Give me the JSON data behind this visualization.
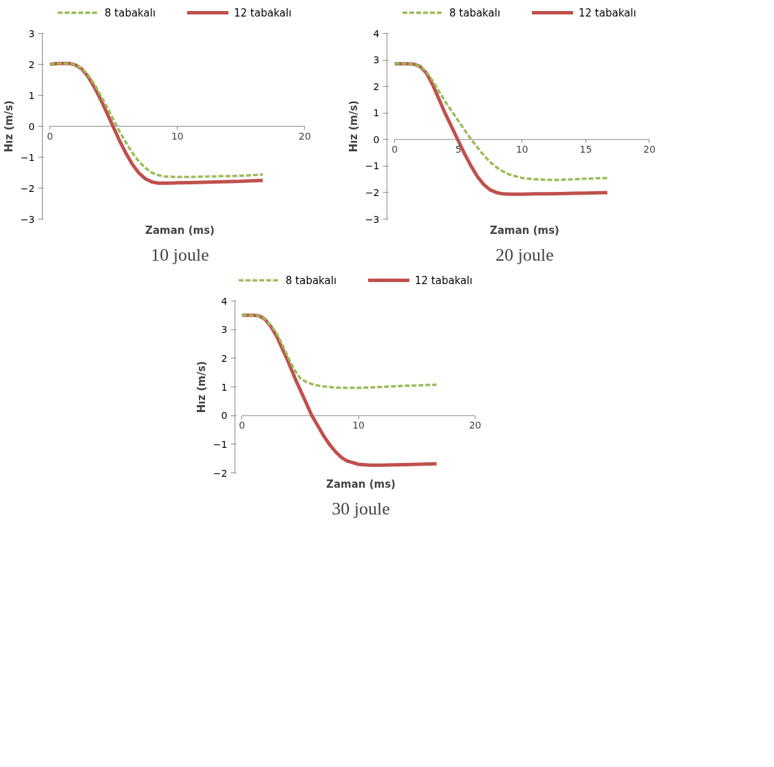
{
  "chart_data": [
    {
      "type": "line",
      "xlabel": "Zaman (ms)",
      "ylabel": "Hız (m/s)",
      "xlim": [
        0,
        20
      ],
      "ylim": [
        -3,
        3
      ],
      "xticks": [
        0,
        10,
        20
      ],
      "yticks": [
        -3,
        -2,
        -1,
        0,
        1,
        2,
        3
      ],
      "grid": false,
      "legend": "top",
      "annotations": [
        "10 joule"
      ],
      "x": [
        0,
        0.5,
        1,
        1.5,
        2,
        2.5,
        3,
        3.5,
        4,
        4.5,
        5,
        5.5,
        6,
        6.5,
        7,
        7.5,
        8,
        8.5,
        9,
        10,
        11,
        12,
        13,
        14,
        15,
        16,
        16.7
      ],
      "series": [
        {
          "name": "8 tabakalı",
          "color": "#9bbb59",
          "line_style": "dashed",
          "values": [
            2.0,
            2.02,
            2.03,
            2.03,
            1.98,
            1.87,
            1.65,
            1.35,
            0.98,
            0.6,
            0.2,
            -0.2,
            -0.55,
            -0.88,
            -1.15,
            -1.35,
            -1.5,
            -1.58,
            -1.62,
            -1.64,
            -1.64,
            -1.63,
            -1.62,
            -1.61,
            -1.6,
            -1.58,
            -1.56
          ]
        },
        {
          "name": "12 tabakalı",
          "color": "#c0504d",
          "line_style": "solid",
          "values": [
            2.0,
            2.02,
            2.03,
            2.03,
            1.98,
            1.85,
            1.6,
            1.25,
            0.85,
            0.4,
            -0.05,
            -0.5,
            -0.9,
            -1.25,
            -1.52,
            -1.7,
            -1.8,
            -1.84,
            -1.84,
            -1.83,
            -1.82,
            -1.81,
            -1.8,
            -1.79,
            -1.78,
            -1.76,
            -1.75
          ]
        }
      ]
    },
    {
      "type": "line",
      "xlabel": "Zaman (ms)",
      "ylabel": "Hız (m/s)",
      "xlim": [
        0,
        20
      ],
      "ylim": [
        -3,
        4
      ],
      "xticks": [
        0,
        5,
        10,
        15,
        20
      ],
      "yticks": [
        -3,
        -2,
        -1,
        0,
        1,
        2,
        3,
        4
      ],
      "grid": false,
      "legend": "top",
      "annotations": [
        "20 joule"
      ],
      "x": [
        0,
        0.5,
        1,
        1.5,
        2,
        2.5,
        3,
        3.5,
        4,
        4.5,
        5,
        5.5,
        6,
        6.5,
        7,
        7.5,
        8,
        8.5,
        9,
        10,
        11,
        12,
        13,
        14,
        15,
        16,
        16.7
      ],
      "series": [
        {
          "name": "8 tabakalı",
          "color": "#9bbb59",
          "line_style": "dashed",
          "values": [
            2.85,
            2.85,
            2.85,
            2.84,
            2.75,
            2.55,
            2.2,
            1.8,
            1.4,
            1.05,
            0.7,
            0.35,
            0.0,
            -0.3,
            -0.6,
            -0.85,
            -1.05,
            -1.2,
            -1.32,
            -1.45,
            -1.5,
            -1.52,
            -1.52,
            -1.5,
            -1.48,
            -1.46,
            -1.45
          ]
        },
        {
          "name": "12 tabakalı",
          "color": "#c0504d",
          "line_style": "solid",
          "values": [
            2.85,
            2.85,
            2.85,
            2.84,
            2.75,
            2.5,
            2.05,
            1.5,
            0.95,
            0.45,
            -0.05,
            -0.55,
            -1.0,
            -1.4,
            -1.7,
            -1.9,
            -2.0,
            -2.05,
            -2.06,
            -2.06,
            -2.05,
            -2.05,
            -2.04,
            -2.03,
            -2.02,
            -2.01,
            -2.0
          ]
        }
      ]
    },
    {
      "type": "line",
      "xlabel": "Zaman (ms)",
      "ylabel": "Hız (m/s)",
      "xlim": [
        0,
        20
      ],
      "ylim": [
        -2,
        4
      ],
      "xticks": [
        0,
        10,
        20
      ],
      "yticks": [
        -2,
        -1,
        0,
        1,
        2,
        3,
        4
      ],
      "grid": false,
      "legend": "top",
      "annotations": [
        "30 joule"
      ],
      "x": [
        0,
        0.5,
        1,
        1.5,
        2,
        2.5,
        3,
        3.5,
        4,
        4.5,
        5,
        5.5,
        6,
        6.5,
        7,
        7.5,
        8,
        8.5,
        9,
        10,
        11,
        12,
        13,
        14,
        15,
        16,
        16.7
      ],
      "series": [
        {
          "name": "8 tabakalı",
          "color": "#9bbb59",
          "line_style": "dashed",
          "values": [
            3.5,
            3.5,
            3.5,
            3.48,
            3.35,
            3.15,
            2.85,
            2.45,
            2.0,
            1.6,
            1.3,
            1.18,
            1.1,
            1.05,
            1.02,
            1.0,
            0.98,
            0.97,
            0.97,
            0.97,
            0.98,
            1.0,
            1.02,
            1.04,
            1.05,
            1.07,
            1.08
          ]
        },
        {
          "name": "12 tabakalı",
          "color": "#c0504d",
          "line_style": "solid",
          "values": [
            3.5,
            3.5,
            3.5,
            3.48,
            3.35,
            3.1,
            2.75,
            2.3,
            1.85,
            1.35,
            0.9,
            0.45,
            0.0,
            -0.35,
            -0.7,
            -1.0,
            -1.25,
            -1.45,
            -1.58,
            -1.7,
            -1.73,
            -1.73,
            -1.72,
            -1.71,
            -1.7,
            -1.69,
            -1.68
          ]
        }
      ]
    }
  ]
}
